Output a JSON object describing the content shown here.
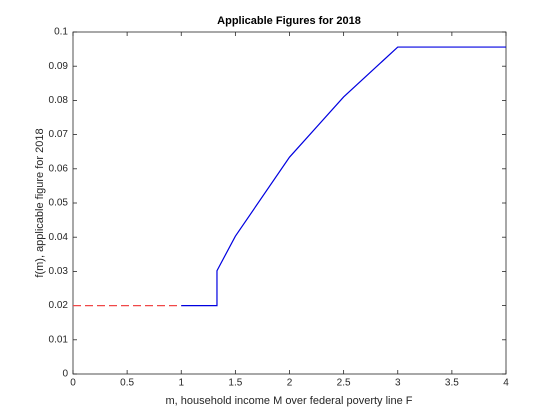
{
  "chart_data": {
    "type": "line",
    "title": "Applicable Figures for 2018",
    "xlabel": "m, household income M over federal poverty line F",
    "ylabel": "f(m), applicable figure for 2018",
    "series": [
      {
        "color": "#f04848",
        "dashed": true,
        "x": [
          0,
          1
        ],
        "values": [
          0.02,
          0.02
        ]
      },
      {
        "color": "#0000e0",
        "dashed": false,
        "x": [
          1,
          1.33,
          1.33,
          1.5,
          2,
          2.5,
          3,
          4
        ],
        "values": [
          0.02,
          0.02,
          0.0302,
          0.0403,
          0.0634,
          0.081,
          0.0956,
          0.0956
        ]
      }
    ],
    "xlim": [
      0,
      4
    ],
    "xticks": [
      0,
      0.5,
      1,
      1.5,
      2,
      2.5,
      3,
      3.5,
      4
    ],
    "ylim": [
      0,
      0.1
    ],
    "yticks": [
      0,
      0.01,
      0.02,
      0.03,
      0.04,
      0.05,
      0.06,
      0.07,
      0.08,
      0.09,
      0.1
    ],
    "grid": false
  }
}
